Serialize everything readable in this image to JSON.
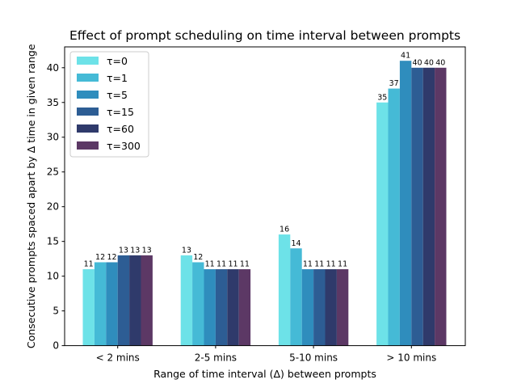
{
  "chart_data": {
    "type": "bar",
    "title": "Effect of prompt scheduling on time interval between prompts",
    "xlabel": "Range of time interval (Δ) between prompts",
    "ylabel": "Consecutive prompts spaced apart by Δ time in given range",
    "categories": [
      "< 2 mins",
      "2-5 mins",
      "5-10 mins",
      "> 10 mins"
    ],
    "ylim": [
      0,
      43
    ],
    "yticks": [
      0,
      5,
      10,
      15,
      20,
      25,
      30,
      35,
      40
    ],
    "grid": false,
    "legend_position": "top-left",
    "series": [
      {
        "name": "τ=0",
        "color": "#6de2e8",
        "values": [
          11,
          13,
          16,
          35
        ]
      },
      {
        "name": "τ=1",
        "color": "#45bad6",
        "values": [
          12,
          12,
          14,
          37
        ]
      },
      {
        "name": "τ=5",
        "color": "#2f8dbd",
        "values": [
          12,
          11,
          11,
          41
        ]
      },
      {
        "name": "τ=15",
        "color": "#2d5d94",
        "values": [
          13,
          11,
          11,
          40
        ]
      },
      {
        "name": "τ=60",
        "color": "#2f3a6b",
        "values": [
          13,
          11,
          11,
          40
        ]
      },
      {
        "name": "τ=300",
        "color": "#5c3865",
        "values": [
          13,
          11,
          11,
          40
        ]
      }
    ]
  }
}
